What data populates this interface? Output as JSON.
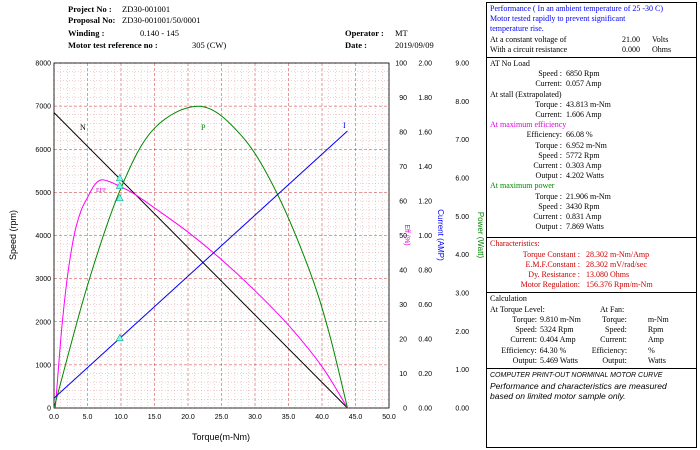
{
  "header": {
    "project_no_label": "Project No :",
    "project_no": "ZD30-001001",
    "proposal_no_label": "Proposal No:",
    "proposal_no": "ZD30-001001/50/0001",
    "winding_label": "Winding :",
    "winding": "0.140   -   145",
    "operator_label": "Operator :",
    "operator": "MT",
    "ref_label": "Motor test reference no :",
    "ref": "305 (CW)",
    "date_label": "Date :",
    "date": "2019/09/09"
  },
  "chart_data": {
    "type": "line",
    "xlabel": "Torque(m-Nm)",
    "ylabel_left": "Speed (rpm)",
    "ylabel_eff": "Eff (%)",
    "ylabel_current": "Current (AMP)",
    "ylabel_power": "Power (Watt)",
    "xlim": [
      0,
      50
    ],
    "x_ticks": [
      "0.0",
      "5.0",
      "10.0",
      "15.0",
      "20.0",
      "25.0",
      "30.0",
      "35.0",
      "40.0",
      "45.0",
      "50.0"
    ],
    "speed_ticks": [
      "0",
      "1000",
      "2000",
      "3000",
      "4000",
      "5000",
      "6000",
      "7000",
      "8000"
    ],
    "eff_ticks": [
      "0",
      "10",
      "20",
      "30",
      "40",
      "50",
      "60",
      "70",
      "80",
      "90",
      "100"
    ],
    "current_ticks": [
      "0.00",
      "0.20",
      "0.40",
      "0.60",
      "0.80",
      "1.00",
      "1.20",
      "1.40",
      "1.60",
      "1.80",
      "2.00"
    ],
    "power_ticks": [
      "0.00",
      "1.00",
      "2.00",
      "3.00",
      "4.00",
      "5.00",
      "6.00",
      "7.00",
      "8.00",
      "9.00"
    ],
    "grid": true,
    "series": [
      {
        "name": "N",
        "color": "#000000",
        "x": [
          0,
          43.8
        ],
        "y": [
          6850,
          0
        ]
      },
      {
        "name": "Eff",
        "color": "#ff00ff",
        "x": [
          0.2,
          0.6,
          1.2,
          2,
          3,
          4,
          5,
          6,
          6.952,
          8,
          9.81,
          12,
          15,
          20,
          25,
          30,
          35,
          40,
          43.8
        ],
        "y": [
          0,
          10,
          24,
          38,
          50,
          57,
          61,
          64.5,
          66.08,
          65.8,
          64.3,
          62,
          58,
          51,
          43,
          34,
          24,
          12,
          0
        ]
      },
      {
        "name": "P",
        "color": "#008800",
        "x": [
          0,
          5,
          10,
          15,
          21.906,
          28,
          33,
          38,
          41,
          43.8
        ],
        "y": [
          0,
          3.2,
          5.74,
          7.3,
          7.869,
          7.1,
          5.7,
          3.65,
          2.0,
          0
        ]
      },
      {
        "name": "I",
        "color": "#0000ff",
        "x": [
          0,
          43.8
        ],
        "y": [
          0.057,
          1.606
        ]
      }
    ],
    "markers": [
      {
        "x": 9.81,
        "series": "N",
        "value": 5324
      },
      {
        "x": 9.81,
        "series": "Eff",
        "value": 64.3
      },
      {
        "x": 9.81,
        "series": "P",
        "value": 5.469
      },
      {
        "x": 9.81,
        "series": "I",
        "value": 0.404
      }
    ],
    "labels": {
      "n": "N",
      "eff": "EFF",
      "p": "P",
      "i": "I"
    }
  },
  "panel": {
    "perf_title": "Performance ( In an ambient temperature of 25 -30 C)",
    "perf_line2": "Motor tested rapidly to prevent significant",
    "perf_line3": "temperature rise.",
    "voltage_label": "At a constant voltage of",
    "voltage_value": "21.00",
    "voltage_unit": "Volts",
    "resist_label": "With a circuit resistance",
    "resist_value": "0.000",
    "resist_unit": "Ohms",
    "noload_title": "AT No Load",
    "nl_speed_label": "Speed :",
    "nl_speed": "6850 Rpm",
    "nl_current_label": "Current:",
    "nl_current": "0.057 Amp",
    "stall_title": "At stall (Extrapolated)",
    "st_torque_label": "Torque :",
    "st_torque": "43.813 m-Nm",
    "st_current_label": "Current:",
    "st_current": "1.606 Amp",
    "maxeff_title": "At maximum efficiency",
    "me_eff_label": "Efficiency:",
    "me_eff": "66.08 %",
    "me_torque_label": "Torque :",
    "me_torque": "6.952 m-Nm",
    "me_speed_label": "Speed :",
    "me_speed": "5772 Rpm",
    "me_current_label": "Current :",
    "me_current": "0.303 Amp",
    "me_output_label": "Output :",
    "me_output": "4.202 Watts",
    "maxpow_title": "At maximum power",
    "mp_torque_label": "Torque :",
    "mp_torque": "21.906 m-Nm",
    "mp_speed_label": "Speed :",
    "mp_speed": "3430 Rpm",
    "mp_current_label": "Current :",
    "mp_current": "0.831 Amp",
    "mp_output_label": "Output :",
    "mp_output": "7.869 Watts",
    "char_title": "Characteristics:",
    "tc_label": "Torque Constant :",
    "tc": "28.302 m-Nm/Amp",
    "emf_label": "E.M.F.Constant :",
    "emf": "28.302 mV/rad/sec",
    "dy_label": "Dy. Resistance :",
    "dy": "13.080 Ohms",
    "reg_label": "Motor Regulation:",
    "reg": "156.376 Rpm/m-Nm",
    "calc_title": "Calculation",
    "at_torque_title": "At Torque Level:",
    "at_fan_title": "At Fan:",
    "cl_torque_label": "Torque:",
    "cl_torque": "9.810 m-Nm",
    "fan_torque_label": "Torque:",
    "fan_torque_unit": "m-Nm",
    "cl_speed_label": "Speed:",
    "cl_speed": "5324 Rpm",
    "fan_speed_label": "Speed:",
    "fan_speed_unit": "Rpm",
    "cl_current_label": "Current:",
    "cl_current": "0.404 Amp",
    "fan_current_label": "Current:",
    "fan_current_unit": "Amp",
    "cl_eff_label": "Efficiency:",
    "cl_eff": "64.30 %",
    "fan_eff_label": "Efficiency:",
    "fan_eff_unit": "%",
    "cl_output_label": "Output:",
    "cl_output": "5.469 Watts",
    "fan_output_label": "Output:",
    "fan_output_unit": "Watts",
    "note_title": "COMPUTER PRINT-OUT NORMINAL MOTOR CURVE",
    "note_line1": "Performance and characteristics are measured",
    "note_line2": "based on limited motor sample only."
  }
}
